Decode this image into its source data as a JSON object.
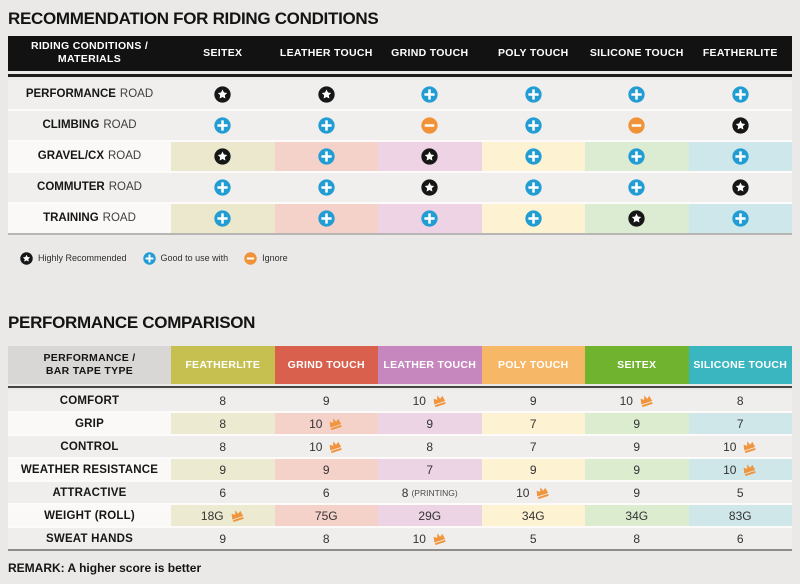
{
  "icons": {
    "star_color": "#161616",
    "plus_color": "#219dd4",
    "minus_color": "#ef9238",
    "crown_color": "#f0953e",
    "glyph_fill": "#ffffff"
  },
  "chart_data": [
    {
      "type": "table",
      "title": "RECOMMENDATION FOR RIDING CONDITIONS",
      "corner_header": "RIDING CONDITIONS / MATERIALS",
      "columns": [
        "SEITEX",
        "LEATHER TOUCH",
        "GRIND TOUCH",
        "POLY TOUCH",
        "SILICONE TOUCH",
        "FEATHERLITE"
      ],
      "column_tints": [
        "#ebe8ce",
        "#f4d2ca",
        "#edd3e4",
        "#fdf3d3",
        "#dcecd2",
        "#cee7ea"
      ],
      "rows": [
        {
          "label": "PERFORMANCE",
          "label_suffix": "ROAD",
          "highlighted": false,
          "ratings": [
            "star",
            "star",
            "plus",
            "plus",
            "plus",
            "plus"
          ]
        },
        {
          "label": "CLIMBING",
          "label_suffix": "ROAD",
          "highlighted": false,
          "ratings": [
            "plus",
            "plus",
            "minus",
            "plus",
            "minus",
            "star"
          ]
        },
        {
          "label": "GRAVEL/CX",
          "label_suffix": "ROAD",
          "highlighted": true,
          "ratings": [
            "star",
            "plus",
            "star",
            "plus",
            "plus",
            "plus"
          ]
        },
        {
          "label": "COMMUTER",
          "label_suffix": "ROAD",
          "highlighted": false,
          "ratings": [
            "plus",
            "plus",
            "star",
            "plus",
            "plus",
            "star"
          ]
        },
        {
          "label": "TRAINING",
          "label_suffix": "ROAD",
          "highlighted": true,
          "ratings": [
            "plus",
            "plus",
            "plus",
            "plus",
            "star",
            "plus"
          ]
        }
      ],
      "legend": [
        {
          "icon": "star",
          "label": "Highly Recommended"
        },
        {
          "icon": "plus",
          "label": "Good to use with"
        },
        {
          "icon": "minus",
          "label": "Ignore"
        }
      ]
    },
    {
      "type": "table",
      "title": "PERFORMANCE COMPARISON",
      "corner_header": "PERFORMANCE / BAR TAPE TYPE",
      "columns": [
        {
          "label": "FEATHERLITE",
          "color": "#c6c050",
          "tint": "#ecead0"
        },
        {
          "label": "GRIND TOUCH",
          "color": "#d8604d",
          "tint": "#f4d2ca"
        },
        {
          "label": "LEATHER TOUCH",
          "color": "#c687be",
          "tint": "#edd4e5"
        },
        {
          "label": "POLY TOUCH",
          "color": "#f6b766",
          "tint": "#fdf2d1"
        },
        {
          "label": "SEITEX",
          "color": "#6fb32e",
          "tint": "#dbeccf"
        },
        {
          "label": "SILICONE TOUCH",
          "color": "#3ab6c0",
          "tint": "#d0e7ea"
        }
      ],
      "rows": [
        {
          "label": "COMFORT",
          "tinted": false,
          "cells": [
            {
              "value": "8"
            },
            {
              "value": "9"
            },
            {
              "value": "10",
              "crown": true
            },
            {
              "value": "9"
            },
            {
              "value": "10",
              "crown": true
            },
            {
              "value": "8"
            }
          ]
        },
        {
          "label": "GRIP",
          "tinted": true,
          "cells": [
            {
              "value": "8"
            },
            {
              "value": "10",
              "crown": true
            },
            {
              "value": "9"
            },
            {
              "value": "7"
            },
            {
              "value": "9"
            },
            {
              "value": "7"
            }
          ]
        },
        {
          "label": "CONTROL",
          "tinted": false,
          "cells": [
            {
              "value": "8"
            },
            {
              "value": "10",
              "crown": true
            },
            {
              "value": "8"
            },
            {
              "value": "7"
            },
            {
              "value": "9"
            },
            {
              "value": "10",
              "crown": true
            }
          ]
        },
        {
          "label": "WEATHER RESISTANCE",
          "tinted": true,
          "cells": [
            {
              "value": "9"
            },
            {
              "value": "9"
            },
            {
              "value": "7"
            },
            {
              "value": "9"
            },
            {
              "value": "9"
            },
            {
              "value": "10",
              "crown": true
            }
          ]
        },
        {
          "label": "ATTRACTIVE",
          "tinted": false,
          "cells": [
            {
              "value": "6"
            },
            {
              "value": "6"
            },
            {
              "value": "8",
              "note": "(PRINTING)"
            },
            {
              "value": "10",
              "crown": true
            },
            {
              "value": "9"
            },
            {
              "value": "5"
            }
          ]
        },
        {
          "label": "WEIGHT (ROLL)",
          "tinted": true,
          "cells": [
            {
              "value": "18G",
              "crown": true
            },
            {
              "value": "75G"
            },
            {
              "value": "29G"
            },
            {
              "value": "34G"
            },
            {
              "value": "34G"
            },
            {
              "value": "83G"
            }
          ]
        },
        {
          "label": "SWEAT HANDS",
          "tinted": false,
          "cells": [
            {
              "value": "9"
            },
            {
              "value": "8"
            },
            {
              "value": "10",
              "crown": true
            },
            {
              "value": "5"
            },
            {
              "value": "8"
            },
            {
              "value": "6"
            }
          ]
        }
      ],
      "remark": "REMARK: A higher score is better"
    }
  ]
}
